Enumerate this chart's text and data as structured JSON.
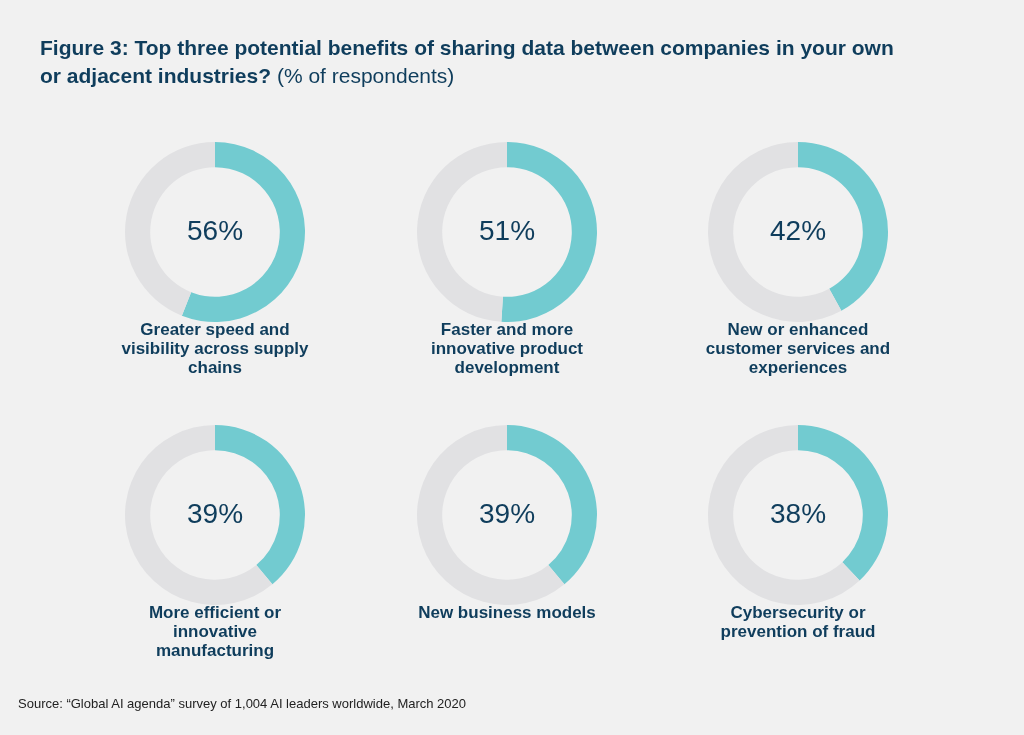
{
  "chart_data": [
    {
      "type": "other",
      "title": "Figure 3: Top three potential benefits of sharing data between companies in your own or adjacent industries?",
      "subtitle": "(% of respondents)",
      "annotations": [
        "Source: “Global AI agenda” survey of 1,004 AI leaders worldwide, March 2020"
      ]
    },
    {
      "type": "donut",
      "title": "Greater speed and visibility across supply chains",
      "categories": [
        null,
        null
      ],
      "values": [
        56,
        44
      ],
      "colors": [
        "#72cbd0",
        "#e1e1e3"
      ],
      "value_labels": [
        "56%",
        null
      ]
    },
    {
      "type": "donut",
      "title": "Faster and more innovative product development",
      "categories": [
        null,
        null
      ],
      "values": [
        51,
        49
      ],
      "colors": [
        "#72cbd0",
        "#e1e1e3"
      ],
      "value_labels": [
        "51%",
        null
      ]
    },
    {
      "type": "donut",
      "title": "New or enhanced customer services and experiences",
      "categories": [
        null,
        null
      ],
      "values": [
        42,
        58
      ],
      "colors": [
        "#72cbd0",
        "#e1e1e3"
      ],
      "value_labels": [
        "42%",
        null
      ]
    },
    {
      "type": "donut",
      "title": "More efficient or innovative manufacturing",
      "categories": [
        null,
        null
      ],
      "values": [
        39,
        61
      ],
      "colors": [
        "#72cbd0",
        "#e1e1e3"
      ],
      "value_labels": [
        "39%",
        null
      ]
    },
    {
      "type": "donut",
      "title": "New business models",
      "categories": [
        null,
        null
      ],
      "values": [
        39,
        61
      ],
      "colors": [
        "#72cbd0",
        "#e1e1e3"
      ],
      "value_labels": [
        "39%",
        null
      ]
    },
    {
      "type": "donut",
      "title": "Cybersecurity or prevention of fraud",
      "categories": [
        null,
        null
      ],
      "values": [
        38,
        62
      ],
      "colors": [
        "#72cbd0",
        "#e1e1e3"
      ],
      "value_labels": [
        "38%",
        null
      ]
    }
  ]
}
